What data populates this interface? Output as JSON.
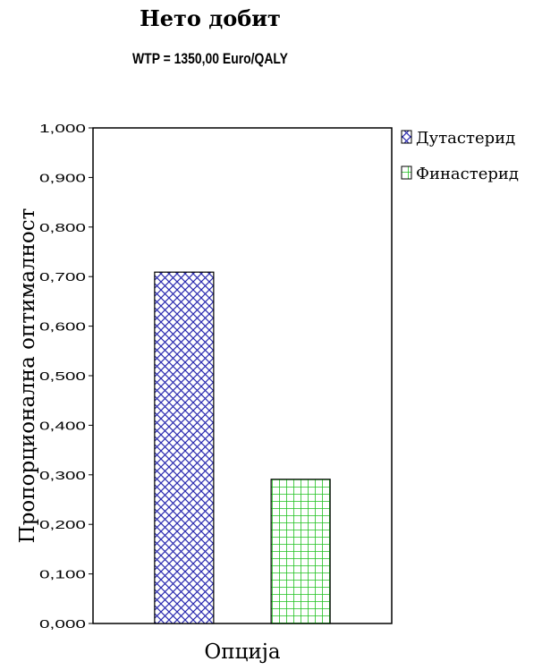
{
  "chart_data": {
    "type": "bar",
    "title": "Нето добит",
    "subtitle": "WTP = 1350,00 Euro/QALY",
    "xlabel": "Опција",
    "ylabel": "Пропорционална оптималност",
    "ylim": [
      0,
      1
    ],
    "y_ticks": [
      "0,000",
      "0,100",
      "0,200",
      "0,300",
      "0,400",
      "0,500",
      "0,600",
      "0,700",
      "0,800",
      "0,900",
      "1,000"
    ],
    "series": [
      {
        "name": "Дутастерид",
        "values": [
          0.709
        ],
        "color": "#2b2bb0",
        "pattern": "crosshatch-diagonal"
      },
      {
        "name": "Финастерид",
        "values": [
          0.291
        ],
        "color": "#1fc21f",
        "pattern": "grid"
      }
    ],
    "legend_position": "top-right",
    "grid": false
  }
}
